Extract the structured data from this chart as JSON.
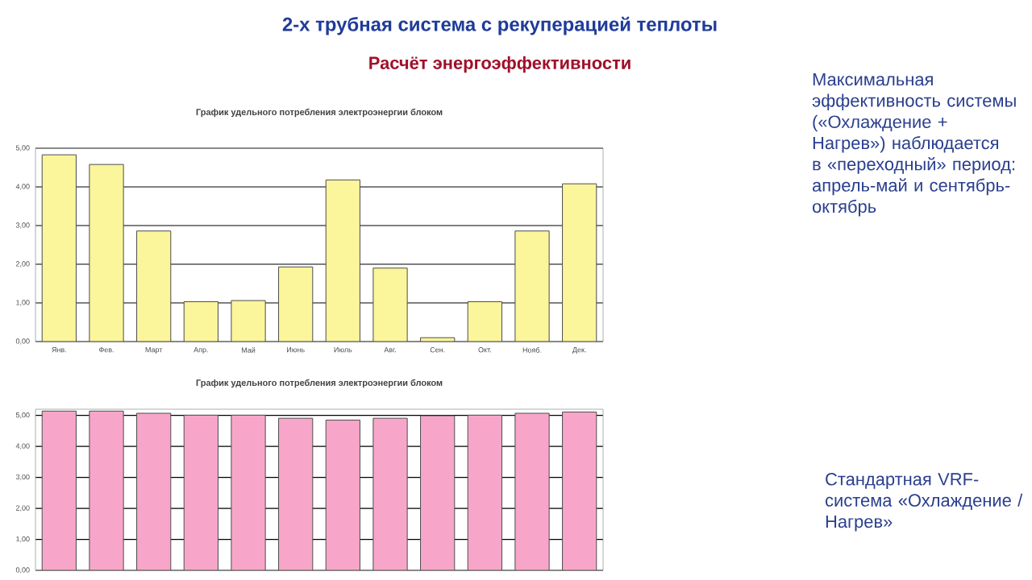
{
  "chart_data": [
    {
      "type": "bar",
      "title": "График удельного потребления электроэнергии блоком",
      "categories": [
        "Янв.",
        "Фев.",
        "Март",
        "Апр.",
        "Май",
        "Июнь",
        "Июль",
        "Авг.",
        "Сен.",
        "Окт.",
        "Нояб.",
        "Дек."
      ],
      "values": [
        4.83,
        4.58,
        2.86,
        1.03,
        1.06,
        1.93,
        4.18,
        1.9,
        0.1,
        1.03,
        2.86,
        4.08
      ],
      "color": "#fbf59b",
      "ylim": [
        0,
        5
      ],
      "yticks": [
        {
          "value": 0,
          "label": "0,00"
        },
        {
          "value": 1,
          "label": "1,00"
        },
        {
          "value": 2,
          "label": "2,00"
        },
        {
          "value": 3,
          "label": "3,00"
        },
        {
          "value": 4,
          "label": "4,00"
        },
        {
          "value": 5,
          "label": "5,00"
        }
      ],
      "grid": "y",
      "annotations": [
        "2-х трубная система с рекуперацией теплоты",
        "Расчёт энергоэффективности",
        "Максимальная эффективность системы («Охлаждение + Нагрев») наблюдается в «переходный» период: апрель-май и сентябрь-октябрь"
      ]
    },
    {
      "type": "bar",
      "title": "График удельного потребления электроэнергии блоком",
      "categories": [
        null,
        null,
        null,
        null,
        null,
        null,
        null,
        null,
        null,
        null,
        null,
        null
      ],
      "values": [
        5.14,
        5.14,
        5.07,
        5.01,
        5.01,
        4.91,
        4.85,
        4.91,
        4.99,
        5.01,
        5.07,
        5.11
      ],
      "color": "#f7a6c9",
      "ylim": [
        0,
        5.2
      ],
      "yticks": [
        {
          "value": 0,
          "label": "0,00"
        },
        {
          "value": 1,
          "label": "1,00"
        },
        {
          "value": 2,
          "label": "2,00"
        },
        {
          "value": 3,
          "label": "3,00"
        },
        {
          "value": 4,
          "label": "4,00"
        },
        {
          "value": 5,
          "label": "5,00"
        }
      ],
      "grid": "y",
      "tick_labels": "y",
      "annotations": [
        "Стандартная VRF-система «Охлаждение / Нагрев»"
      ]
    }
  ]
}
